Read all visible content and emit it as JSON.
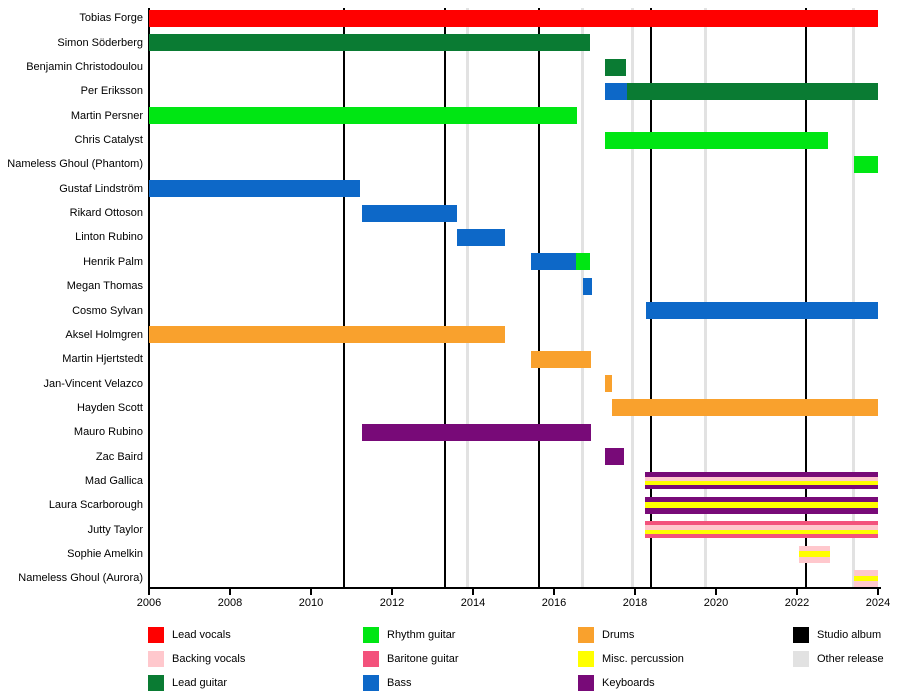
{
  "chart_data": {
    "type": "timeline",
    "x_axis": {
      "min": 2006,
      "max": 2024,
      "ticks": [
        2006,
        2008,
        2010,
        2012,
        2014,
        2016,
        2018,
        2020,
        2022,
        2024
      ]
    },
    "members": [
      {
        "name": "Tobias Forge",
        "segments": [
          {
            "roles": [
              "Lead vocals"
            ],
            "start": 2006,
            "end": 2024
          }
        ]
      },
      {
        "name": "Simon Söderberg",
        "segments": [
          {
            "roles": [
              "Lead guitar"
            ],
            "start": 2006,
            "end": 2016.9
          }
        ]
      },
      {
        "name": "Benjamin Christodoulou",
        "segments": [
          {
            "roles": [
              "Lead guitar"
            ],
            "start": 2017.25,
            "end": 2017.78
          }
        ]
      },
      {
        "name": "Per Eriksson",
        "segments": [
          {
            "roles": [
              "Bass"
            ],
            "start": 2017.25,
            "end": 2017.8
          },
          {
            "roles": [
              "Lead guitar"
            ],
            "start": 2017.8,
            "end": 2024
          }
        ]
      },
      {
        "name": "Martin Persner",
        "segments": [
          {
            "roles": [
              "Rhythm guitar"
            ],
            "start": 2006,
            "end": 2016.57
          }
        ]
      },
      {
        "name": "Chris Catalyst",
        "segments": [
          {
            "roles": [
              "Rhythm guitar"
            ],
            "start": 2017.25,
            "end": 2022.76
          }
        ]
      },
      {
        "name": "Nameless Ghoul (Phantom)",
        "segments": [
          {
            "roles": [
              "Rhythm guitar"
            ],
            "start": 2023.4,
            "end": 2024
          }
        ]
      },
      {
        "name": "Gustaf Lindström",
        "segments": [
          {
            "roles": [
              "Bass"
            ],
            "start": 2006,
            "end": 2011.22
          }
        ]
      },
      {
        "name": "Rikard Ottoson",
        "segments": [
          {
            "roles": [
              "Bass"
            ],
            "start": 2011.27,
            "end": 2013.6
          }
        ]
      },
      {
        "name": "Linton Rubino",
        "segments": [
          {
            "roles": [
              "Bass"
            ],
            "start": 2013.6,
            "end": 2014.78
          }
        ]
      },
      {
        "name": "Henrik Palm",
        "segments": [
          {
            "roles": [
              "Bass"
            ],
            "start": 2015.44,
            "end": 2016.55
          },
          {
            "roles": [
              "Rhythm guitar"
            ],
            "start": 2016.55,
            "end": 2016.9
          }
        ]
      },
      {
        "name": "Megan Thomas",
        "segments": [
          {
            "roles": [
              "Bass"
            ],
            "start": 2016.72,
            "end": 2016.95
          }
        ]
      },
      {
        "name": "Cosmo Sylvan",
        "segments": [
          {
            "roles": [
              "Bass"
            ],
            "start": 2018.28,
            "end": 2024
          }
        ]
      },
      {
        "name": "Aksel Holmgren",
        "segments": [
          {
            "roles": [
              "Drums"
            ],
            "start": 2006,
            "end": 2014.78
          }
        ]
      },
      {
        "name": "Martin Hjertstedt",
        "segments": [
          {
            "roles": [
              "Drums"
            ],
            "start": 2015.44,
            "end": 2016.92
          }
        ]
      },
      {
        "name": "Jan-Vincent Velazco",
        "segments": [
          {
            "roles": [
              "Drums"
            ],
            "start": 2017.25,
            "end": 2017.42
          }
        ]
      },
      {
        "name": "Hayden Scott",
        "segments": [
          {
            "roles": [
              "Drums"
            ],
            "start": 2017.44,
            "end": 2024
          }
        ]
      },
      {
        "name": "Mauro Rubino",
        "segments": [
          {
            "roles": [
              "Keyboards"
            ],
            "start": 2011.27,
            "end": 2016.92
          }
        ]
      },
      {
        "name": "Zac Baird",
        "segments": [
          {
            "roles": [
              "Keyboards"
            ],
            "start": 2017.25,
            "end": 2017.73
          }
        ]
      },
      {
        "name": "Mad Gallica",
        "segments": [
          {
            "roles": [
              "Keyboards",
              "Backing vocals",
              "Misc. percussion"
            ],
            "start": 2018.25,
            "end": 2024
          }
        ]
      },
      {
        "name": "Laura Scarborough",
        "segments": [
          {
            "roles": [
              "Keyboards",
              "Misc. percussion"
            ],
            "start": 2018.25,
            "end": 2024
          }
        ]
      },
      {
        "name": "Jutty Taylor",
        "segments": [
          {
            "roles": [
              "Baritone guitar",
              "Backing vocals",
              "Misc. percussion"
            ],
            "start": 2018.25,
            "end": 2024
          }
        ]
      },
      {
        "name": "Sophie Amelkin",
        "segments": [
          {
            "roles": [
              "Backing vocals",
              "Misc. percussion"
            ],
            "start": 2022.05,
            "end": 2022.82
          }
        ]
      },
      {
        "name": "Nameless Ghoul (Aurora)",
        "segments": [
          {
            "roles": [
              "Backing vocals",
              "Misc. percussion"
            ],
            "start": 2023.4,
            "end": 2024
          }
        ]
      }
    ],
    "events": {
      "studio_albums": [
        2010.81,
        2013.31,
        2015.64,
        2018.4,
        2022.21
      ],
      "other_releases": [
        2013.87,
        2016.7,
        2017.95,
        2019.73,
        2023.4
      ]
    },
    "role_colors": {
      "Lead vocals": "#ff0000",
      "Backing vocals": "#ffc8cd",
      "Lead guitar": "#0a7b33",
      "Rhythm guitar": "#00e613",
      "Baritone guitar": "#f3527c",
      "Bass": "#0d68c8",
      "Drums": "#f9a12d",
      "Misc. percussion": "#ffff00",
      "Keyboards": "#780a78",
      "Studio album": "#000000",
      "Other release": "#e2e2e2"
    },
    "legend": [
      {
        "label": "Lead vocals",
        "color": "#ff0000"
      },
      {
        "label": "Backing vocals",
        "color": "#ffc8cd"
      },
      {
        "label": "Lead guitar",
        "color": "#0a7b33"
      },
      {
        "label": "Rhythm guitar",
        "color": "#00e613"
      },
      {
        "label": "Baritone guitar",
        "color": "#f3527c"
      },
      {
        "label": "Bass",
        "color": "#0d68c8"
      },
      {
        "label": "Drums",
        "color": "#f9a12d"
      },
      {
        "label": "Misc. percussion",
        "color": "#ffff00"
      },
      {
        "label": "Keyboards",
        "color": "#780a78"
      },
      {
        "label": "Studio album",
        "color": "#000000"
      },
      {
        "label": "Other release",
        "color": "#e2e2e2"
      }
    ]
  }
}
